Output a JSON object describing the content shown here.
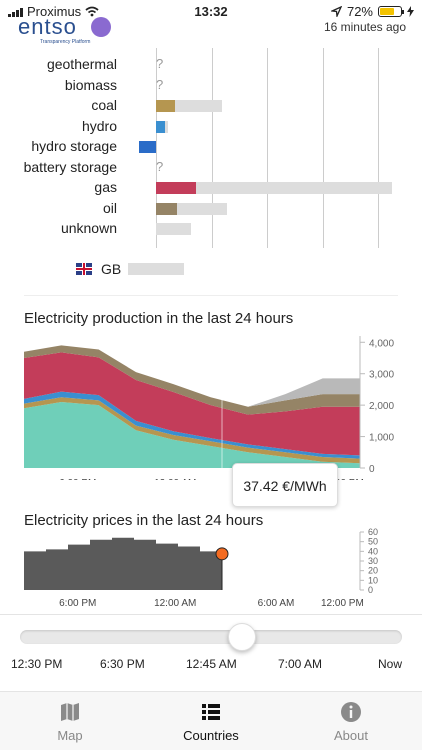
{
  "status": {
    "carrier": "Proximus",
    "time": "13:32",
    "battery_percent": "72%",
    "battery_level": 0.72
  },
  "header": {
    "logo_text": "entso",
    "logo_sub": "Transparency Platform",
    "updated": "16 minutes ago"
  },
  "production_rows": [
    {
      "label": "geothermal",
      "unknown": true,
      "capacity": 0,
      "production": 0,
      "color": ""
    },
    {
      "label": "biomass",
      "unknown": true,
      "capacity": 0,
      "production": 0,
      "color": ""
    },
    {
      "label": "coal",
      "unknown": false,
      "capacity": 0.28,
      "production": 0.08,
      "color": "#b59650"
    },
    {
      "label": "hydro",
      "unknown": false,
      "capacity": 0.05,
      "production": 0.04,
      "color": "#3a8fd0"
    },
    {
      "label": "hydro storage",
      "unknown": false,
      "capacity": 0.07,
      "production": -0.07,
      "color": "#2a6cc8"
    },
    {
      "label": "battery storage",
      "unknown": true,
      "capacity": 0,
      "production": 0,
      "color": ""
    },
    {
      "label": "gas",
      "unknown": false,
      "capacity": 1.0,
      "production": 0.17,
      "color": "#c33d5a"
    },
    {
      "label": "oil",
      "unknown": false,
      "capacity": 0.3,
      "production": 0.09,
      "color": "#958466"
    },
    {
      "label": "unknown",
      "unknown": false,
      "capacity": 0.15,
      "production": 0,
      "color": ""
    }
  ],
  "exchange": {
    "country": "GB"
  },
  "production_chart": {
    "title": "Electricity production in the last 24 hours",
    "yticks": [
      "4,000",
      "3,000",
      "2,000",
      "1,000",
      "0"
    ],
    "xticks": [
      "6:00 PM",
      "12:00 AM",
      "6:00 AM",
      "12:00 PM"
    ]
  },
  "tooltip": {
    "text": "37.42 €/MWh"
  },
  "price_chart": {
    "title": "Electricity prices in the last 24 hours",
    "yticks": [
      "60",
      "50",
      "40",
      "30",
      "20",
      "10",
      "0"
    ],
    "xticks": [
      "6:00 PM",
      "12:00 AM",
      "6:00 AM",
      "12:00 PM"
    ]
  },
  "slider": {
    "labels": [
      "12:30 PM",
      "6:30 PM",
      "12:45 AM",
      "7:00 AM",
      "Now"
    ],
    "position": 0.58
  },
  "tabs": [
    {
      "label": "Map",
      "icon": "map-icon",
      "active": false
    },
    {
      "label": "Countries",
      "icon": "list-icon",
      "active": true
    },
    {
      "label": "About",
      "icon": "info-icon",
      "active": false
    }
  ],
  "colors": {
    "accent": "#f36b21",
    "gas": "#c33d5a",
    "coal": "#b59650",
    "hydro": "#3a8fd0",
    "nuclear": "#6fcfb9",
    "oil": "#958466",
    "price": "#5a5a5a",
    "brand": "#2a4f8f"
  },
  "chart_data": [
    {
      "type": "area",
      "title": "Electricity production in the last 24 hours",
      "xlabel": "",
      "ylabel": "",
      "x": [
        "12:30 PM",
        "3:00 PM",
        "6:00 PM",
        "9:00 PM",
        "12:00 AM",
        "3:00 AM",
        "6:00 AM",
        "9:00 AM",
        "12:00 PM",
        "1:30 PM"
      ],
      "ylim": [
        0,
        4200
      ],
      "series": [
        {
          "color": "#6fcfb9",
          "values": [
            1900,
            2100,
            2000,
            1200,
            900,
            700,
            500,
            350,
            200,
            150
          ]
        },
        {
          "color": "#b59650",
          "values": [
            150,
            150,
            150,
            150,
            150,
            150,
            150,
            150,
            150,
            150
          ]
        },
        {
          "color": "#3a8fd0",
          "values": [
            150,
            180,
            170,
            150,
            120,
            100,
            100,
            100,
            100,
            100
          ]
        },
        {
          "color": "#c33d5a",
          "values": [
            1300,
            1250,
            1200,
            1300,
            1250,
            1050,
            950,
            1200,
            1500,
            1550
          ]
        },
        {
          "color": "#958466",
          "values": [
            200,
            220,
            250,
            250,
            250,
            250,
            250,
            350,
            400,
            400
          ]
        },
        {
          "color": "#b9b9b9",
          "values": [
            0,
            0,
            0,
            0,
            0,
            0,
            0,
            200,
            500,
            500
          ]
        }
      ]
    },
    {
      "type": "area",
      "title": "Electricity prices in the last 24 hours",
      "xlabel": "",
      "ylabel": "",
      "x": [
        "12:30 PM",
        "2:00 PM",
        "3:30 PM",
        "5:00 PM",
        "6:30 PM",
        "8:00 PM",
        "9:30 PM",
        "11:00 PM",
        "12:30 AM",
        "1:00 AM"
      ],
      "ylim": [
        0,
        60
      ],
      "series": [
        {
          "color": "#5a5a5a",
          "values": [
            40,
            42,
            47,
            52,
            54,
            52,
            48,
            45,
            40,
            37.42
          ]
        }
      ]
    }
  ]
}
